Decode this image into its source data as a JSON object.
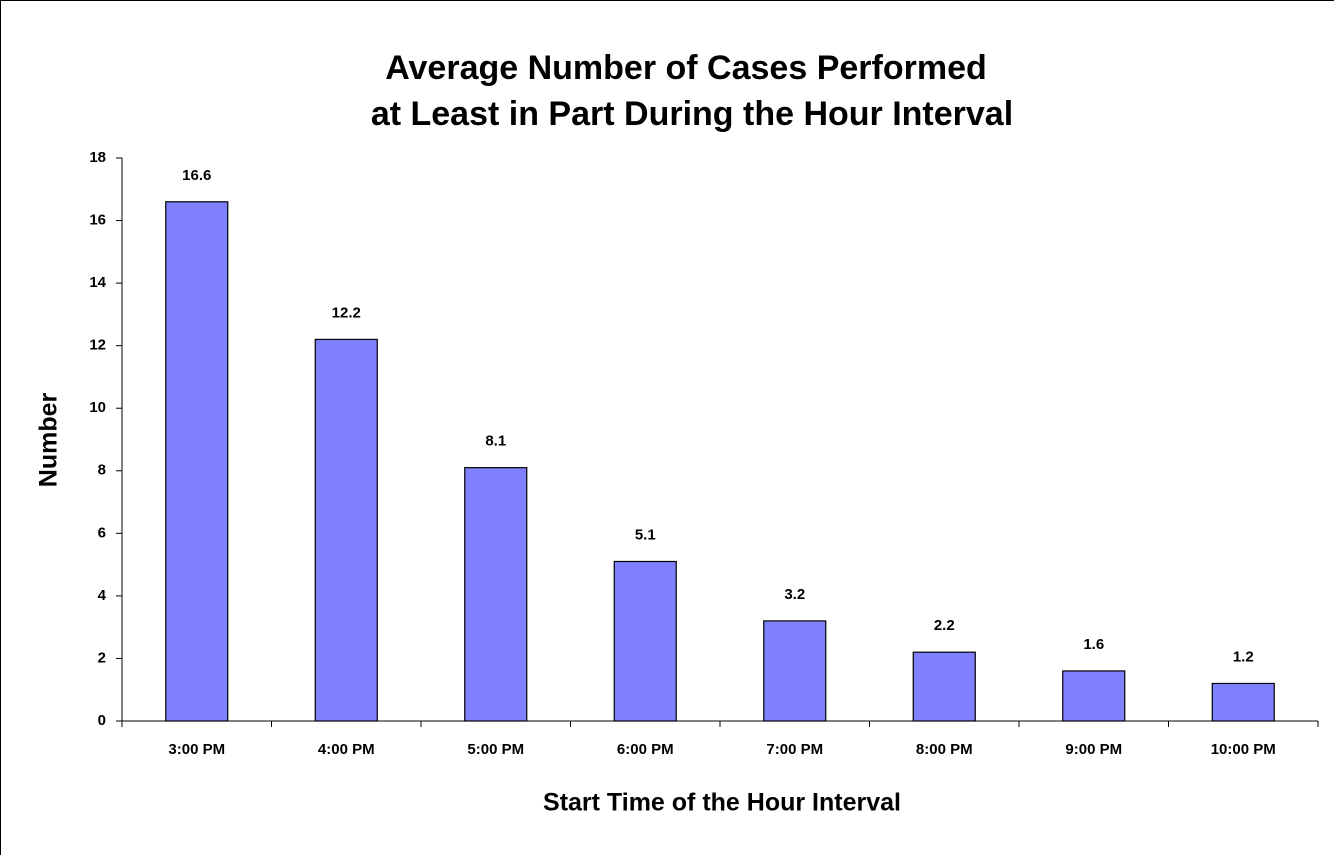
{
  "chart_data": {
    "type": "bar",
    "title": [
      "Average Number of Cases Performed",
      "at Least in Part During the Hour Interval"
    ],
    "x_label": "Start Time of the Hour Interval",
    "y_label": "Number",
    "categories": [
      "3:00 PM",
      "4:00 PM",
      "5:00 PM",
      "6:00 PM",
      "7:00 PM",
      "8:00 PM",
      "9:00 PM",
      "10:00 PM"
    ],
    "values": [
      16.6,
      12.2,
      8.1,
      5.1,
      3.2,
      2.2,
      1.6,
      1.2
    ],
    "color": "#8080ff",
    "ylim": [
      0,
      18
    ],
    "yticks": [
      0,
      2,
      4,
      6,
      8,
      10,
      12,
      14,
      16,
      18
    ]
  }
}
